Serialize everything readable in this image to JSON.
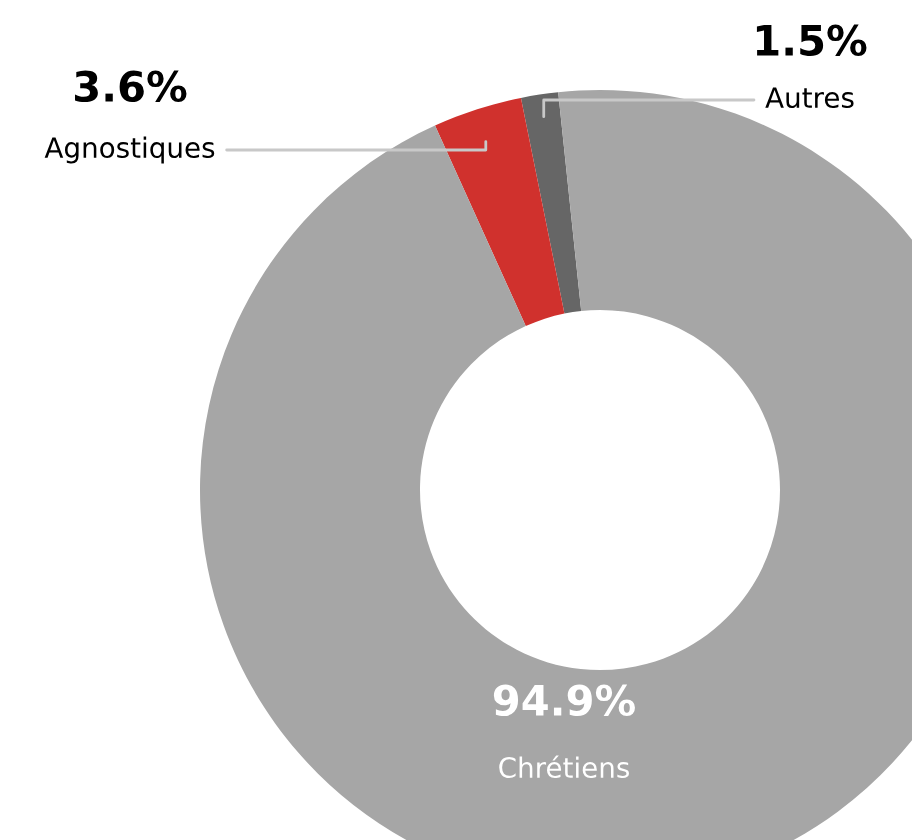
{
  "chart_data": {
    "type": "donut",
    "categories": [
      "Autres",
      "Agnostiques",
      "Chrétiens"
    ],
    "values": [
      1.5,
      3.6,
      94.9
    ],
    "colors": [
      "#666666",
      "#d0312d",
      "#a6a6a6"
    ],
    "value_labels": [
      "1.5%",
      "3.6%",
      "94.9%"
    ],
    "legend": false
  }
}
